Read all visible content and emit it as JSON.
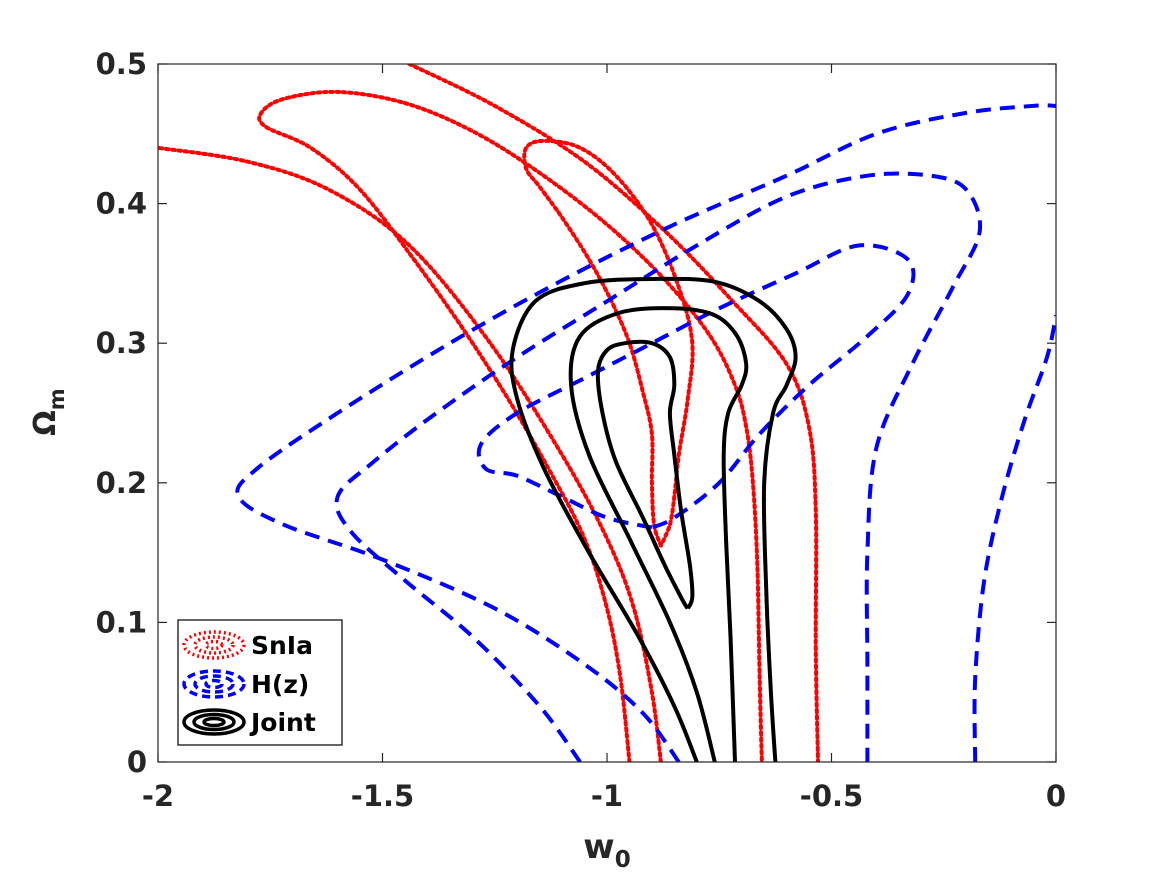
{
  "chart_data": {
    "type": "contour",
    "xlabel": "w",
    "xlabel_sub": "0",
    "ylabel": "Ω",
    "ylabel_sub": "m",
    "xlim": [
      -2,
      0
    ],
    "ylim": [
      0,
      0.5
    ],
    "xticks": [
      -2,
      -1.5,
      -1,
      -0.5,
      0
    ],
    "xtick_labels": [
      "-2",
      "-1.5",
      "-1",
      "-0.5",
      "0"
    ],
    "yticks": [
      0,
      0.1,
      0.2,
      0.3,
      0.4,
      0.5
    ],
    "ytick_labels": [
      "0",
      "0.1",
      "0.2",
      "0.3",
      "0.4",
      "0.5"
    ],
    "grid": false,
    "legend_placement": "bottom-left",
    "series": [
      {
        "name": "SnIa",
        "color": "#ff0000",
        "style": "dotted",
        "contours": [
          [
            [
              -0.88,
              0.155
            ],
            [
              -0.895,
              0.17
            ],
            [
              -0.9,
              0.2
            ],
            [
              -0.9,
              0.235
            ],
            [
              -0.92,
              0.265
            ],
            [
              -0.95,
              0.3
            ],
            [
              -0.99,
              0.33
            ],
            [
              -1.04,
              0.36
            ],
            [
              -1.1,
              0.39
            ],
            [
              -1.15,
              0.412
            ],
            [
              -1.18,
              0.425
            ],
            [
              -1.18,
              0.44
            ],
            [
              -1.14,
              0.445
            ],
            [
              -1.06,
              0.44
            ],
            [
              -0.98,
              0.42
            ],
            [
              -0.9,
              0.385
            ],
            [
              -0.84,
              0.34
            ],
            [
              -0.81,
              0.3
            ],
            [
              -0.82,
              0.26
            ],
            [
              -0.84,
              0.22
            ],
            [
              -0.85,
              0.19
            ],
            [
              -0.86,
              0.17
            ],
            [
              -0.88,
              0.155
            ]
          ],
          [
            [
              -0.95,
              0.0
            ],
            [
              -0.97,
              0.06
            ],
            [
              -1.0,
              0.11
            ],
            [
              -1.05,
              0.16
            ],
            [
              -1.13,
              0.21
            ],
            [
              -1.22,
              0.26
            ],
            [
              -1.32,
              0.31
            ],
            [
              -1.43,
              0.36
            ],
            [
              -1.55,
              0.41
            ],
            [
              -1.66,
              0.44
            ],
            [
              -1.76,
              0.455
            ],
            [
              -1.77,
              0.465
            ],
            [
              -1.72,
              0.475
            ],
            [
              -1.6,
              0.48
            ],
            [
              -1.45,
              0.472
            ],
            [
              -1.3,
              0.452
            ],
            [
              -1.15,
              0.422
            ],
            [
              -1.0,
              0.385
            ],
            [
              -0.87,
              0.345
            ],
            [
              -0.77,
              0.305
            ],
            [
              -0.715,
              0.27
            ],
            [
              -0.69,
              0.24
            ],
            [
              -0.675,
              0.2
            ],
            [
              -0.665,
              0.14
            ],
            [
              -0.66,
              0.06
            ],
            [
              -0.655,
              0.0
            ]
          ],
          [
            [
              -0.88,
              0.0
            ],
            [
              -0.9,
              0.05
            ],
            [
              -0.94,
              0.11
            ],
            [
              -1.0,
              0.16
            ],
            [
              -1.1,
              0.22
            ],
            [
              -1.26,
              0.3
            ],
            [
              -1.44,
              0.37
            ],
            [
              -1.62,
              0.41
            ],
            [
              -1.8,
              0.43
            ],
            [
              -2.0,
              0.44
            ]
          ],
          [
            [
              -1.44,
              0.5
            ],
            [
              -1.25,
              0.47
            ],
            [
              -1.05,
              0.43
            ],
            [
              -0.87,
              0.38
            ],
            [
              -0.72,
              0.33
            ],
            [
              -0.6,
              0.285
            ],
            [
              -0.55,
              0.24
            ],
            [
              -0.535,
              0.18
            ],
            [
              -0.535,
              0.08
            ],
            [
              -0.53,
              0.0
            ]
          ]
        ]
      },
      {
        "name": "H(z)",
        "color": "#0000ff",
        "style": "dashed",
        "contours": [
          [
            [
              -0.9,
              0.168
            ],
            [
              -1.0,
              0.175
            ],
            [
              -1.1,
              0.19
            ],
            [
              -1.2,
              0.205
            ],
            [
              -1.27,
              0.21
            ],
            [
              -1.28,
              0.228
            ],
            [
              -1.2,
              0.25
            ],
            [
              -1.05,
              0.275
            ],
            [
              -0.9,
              0.3
            ],
            [
              -0.75,
              0.325
            ],
            [
              -0.58,
              0.35
            ],
            [
              -0.44,
              0.37
            ],
            [
              -0.33,
              0.36
            ],
            [
              -0.33,
              0.335
            ],
            [
              -0.42,
              0.305
            ],
            [
              -0.55,
              0.27
            ],
            [
              -0.66,
              0.235
            ],
            [
              -0.75,
              0.2
            ],
            [
              -0.85,
              0.175
            ],
            [
              -0.9,
              0.168
            ]
          ],
          [
            [
              -1.06,
              0.0
            ],
            [
              -1.15,
              0.04
            ],
            [
              -1.3,
              0.09
            ],
            [
              -1.45,
              0.13
            ],
            [
              -1.57,
              0.165
            ],
            [
              -1.6,
              0.19
            ],
            [
              -1.52,
              0.215
            ],
            [
              -1.38,
              0.25
            ],
            [
              -1.2,
              0.29
            ],
            [
              -1.0,
              0.33
            ],
            [
              -0.8,
              0.37
            ],
            [
              -0.6,
              0.405
            ],
            [
              -0.42,
              0.42
            ],
            [
              -0.28,
              0.42
            ],
            [
              -0.2,
              0.41
            ],
            [
              -0.17,
              0.38
            ],
            [
              -0.23,
              0.34
            ],
            [
              -0.32,
              0.285
            ],
            [
              -0.4,
              0.225
            ],
            [
              -0.42,
              0.15
            ],
            [
              -0.42,
              0.07
            ],
            [
              -0.42,
              0.0
            ]
          ],
          [
            [
              -0.84,
              0.0
            ],
            [
              -0.92,
              0.035
            ],
            [
              -1.05,
              0.07
            ],
            [
              -1.25,
              0.11
            ],
            [
              -1.5,
              0.145
            ],
            [
              -1.72,
              0.17
            ],
            [
              -1.82,
              0.19
            ],
            [
              -1.78,
              0.21
            ],
            [
              -1.6,
              0.25
            ],
            [
              -1.35,
              0.3
            ],
            [
              -1.1,
              0.345
            ],
            [
              -0.85,
              0.385
            ],
            [
              -0.6,
              0.42
            ],
            [
              -0.4,
              0.45
            ],
            [
              -0.2,
              0.465
            ],
            [
              -0.05,
              0.47
            ],
            [
              0.0,
              0.47
            ]
          ],
          [
            [
              -0.18,
              0.0
            ],
            [
              -0.18,
              0.06
            ],
            [
              -0.16,
              0.13
            ],
            [
              -0.12,
              0.19
            ],
            [
              -0.07,
              0.245
            ],
            [
              -0.02,
              0.29
            ],
            [
              0.0,
              0.32
            ]
          ]
        ]
      },
      {
        "name": "Joint",
        "color": "#000000",
        "style": "solid",
        "contours": [
          [
            [
              -0.82,
              0.11
            ],
            [
              -0.83,
              0.115
            ],
            [
              -0.87,
              0.14
            ],
            [
              -0.92,
              0.175
            ],
            [
              -0.98,
              0.215
            ],
            [
              -1.01,
              0.25
            ],
            [
              -1.02,
              0.28
            ],
            [
              -1.0,
              0.295
            ],
            [
              -0.96,
              0.3
            ],
            [
              -0.9,
              0.3
            ],
            [
              -0.86,
              0.29
            ],
            [
              -0.85,
              0.27
            ],
            [
              -0.86,
              0.25
            ],
            [
              -0.85,
              0.22
            ],
            [
              -0.835,
              0.18
            ],
            [
              -0.815,
              0.14
            ],
            [
              -0.81,
              0.118
            ],
            [
              -0.82,
              0.11
            ]
          ],
          [
            [
              -0.76,
              0.0
            ],
            [
              -0.8,
              0.05
            ],
            [
              -0.86,
              0.1
            ],
            [
              -0.95,
              0.16
            ],
            [
              -1.04,
              0.22
            ],
            [
              -1.08,
              0.27
            ],
            [
              -1.06,
              0.305
            ],
            [
              -0.97,
              0.322
            ],
            [
              -0.85,
              0.325
            ],
            [
              -0.76,
              0.32
            ],
            [
              -0.71,
              0.305
            ],
            [
              -0.69,
              0.285
            ],
            [
              -0.7,
              0.27
            ],
            [
              -0.73,
              0.25
            ],
            [
              -0.74,
              0.22
            ],
            [
              -0.735,
              0.16
            ],
            [
              -0.725,
              0.09
            ],
            [
              -0.715,
              0.0
            ]
          ],
          [
            [
              -0.8,
              0.0
            ],
            [
              -0.85,
              0.04
            ],
            [
              -0.93,
              0.09
            ],
            [
              -1.04,
              0.15
            ],
            [
              -1.14,
              0.21
            ],
            [
              -1.2,
              0.26
            ],
            [
              -1.21,
              0.295
            ],
            [
              -1.16,
              0.33
            ],
            [
              -1.05,
              0.343
            ],
            [
              -0.9,
              0.346
            ],
            [
              -0.76,
              0.344
            ],
            [
              -0.66,
              0.33
            ],
            [
              -0.6,
              0.31
            ],
            [
              -0.58,
              0.29
            ],
            [
              -0.6,
              0.27
            ],
            [
              -0.63,
              0.25
            ],
            [
              -0.65,
              0.2
            ],
            [
              -0.645,
              0.12
            ],
            [
              -0.635,
              0.05
            ],
            [
              -0.625,
              0.0
            ]
          ]
        ]
      }
    ]
  }
}
